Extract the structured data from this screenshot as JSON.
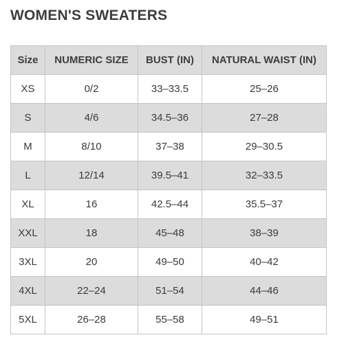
{
  "title": "WOMEN'S SWEATERS",
  "table": {
    "headers": [
      "Size",
      "NUMERIC SIZE",
      "BUST (IN)",
      "NATURAL WAIST (IN)"
    ],
    "rows": [
      [
        "XS",
        "0/2",
        "33–33.5",
        "25–26"
      ],
      [
        "S",
        "4/6",
        "34.5–36",
        "27–28"
      ],
      [
        "M",
        "8/10",
        "37–38",
        "29–30.5"
      ],
      [
        "L",
        "12/14",
        "39.5–41",
        "32–33.5"
      ],
      [
        "XL",
        "16",
        "42.5–44",
        "35.5–37"
      ],
      [
        "XXL",
        "18",
        "45–48",
        "38–39"
      ],
      [
        "3XL",
        "20",
        "49–50",
        "40–42"
      ],
      [
        "4XL",
        "22–24",
        "51–54",
        "44–46"
      ],
      [
        "5XL",
        "26–28",
        "55–58",
        "49–51"
      ]
    ]
  }
}
